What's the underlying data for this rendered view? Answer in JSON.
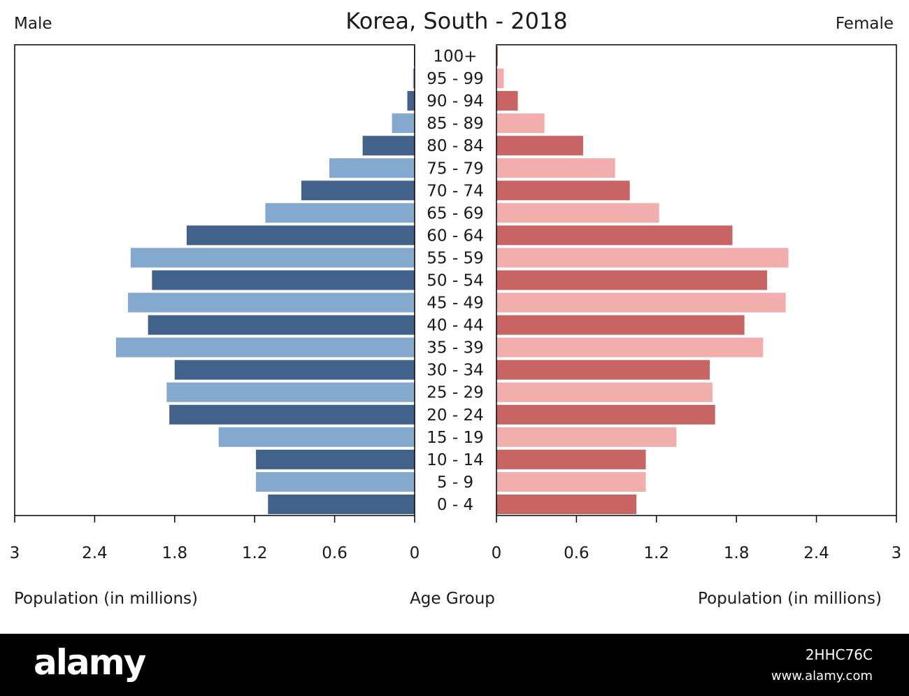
{
  "chart_data": {
    "type": "bar",
    "title": "Korea, South - 2018",
    "left_label": "Male",
    "right_label": "Female",
    "xlabel_left": "Population (in millions)",
    "xlabel_center": "Age Group",
    "xlabel_right": "Population (in millions)",
    "xlim": [
      0,
      3
    ],
    "x_ticks": [
      "3",
      "2.4",
      "1.8",
      "1.2",
      "0.6",
      "0"
    ],
    "x_ticks_right": [
      "0",
      "0.6",
      "1.2",
      "1.8",
      "2.4",
      "3"
    ],
    "x_tick_values": [
      3,
      2.4,
      1.8,
      1.2,
      0.6,
      0
    ],
    "x_tick_values_right": [
      0,
      0.6,
      1.2,
      1.8,
      2.4,
      3
    ],
    "categories": [
      "100+",
      "95 - 99",
      "90 - 94",
      "85 - 89",
      "80 - 84",
      "75 - 79",
      "70 - 74",
      "65 - 69",
      "60 - 64",
      "55 - 59",
      "50 - 54",
      "45 - 49",
      "40 - 44",
      "35 - 39",
      "30 - 34",
      "25 - 29",
      "20 - 24",
      "15 - 19",
      "10 - 14",
      "5 - 9",
      "0 - 4"
    ],
    "series": [
      {
        "values": [
          0.005,
          0.012,
          0.055,
          0.17,
          0.39,
          0.64,
          0.85,
          1.12,
          1.71,
          2.13,
          1.97,
          2.15,
          2.0,
          2.24,
          1.8,
          1.86,
          1.84,
          1.47,
          1.19,
          1.19,
          1.1
        ]
      },
      {
        "values": [
          0.01,
          0.055,
          0.16,
          0.36,
          0.65,
          0.89,
          1.0,
          1.22,
          1.77,
          2.19,
          2.03,
          2.17,
          1.86,
          2.0,
          1.6,
          1.62,
          1.64,
          1.35,
          1.12,
          1.12,
          1.05
        ]
      }
    ],
    "colors": {
      "male_dark": "#42628c",
      "male_light": "#85a8cf",
      "female_dark": "#c86464",
      "female_light": "#f2adad"
    },
    "grid": false
  },
  "footer": {
    "brand": "alamy",
    "stock_id": "2HHC76C",
    "url": "www.alamy.com"
  }
}
